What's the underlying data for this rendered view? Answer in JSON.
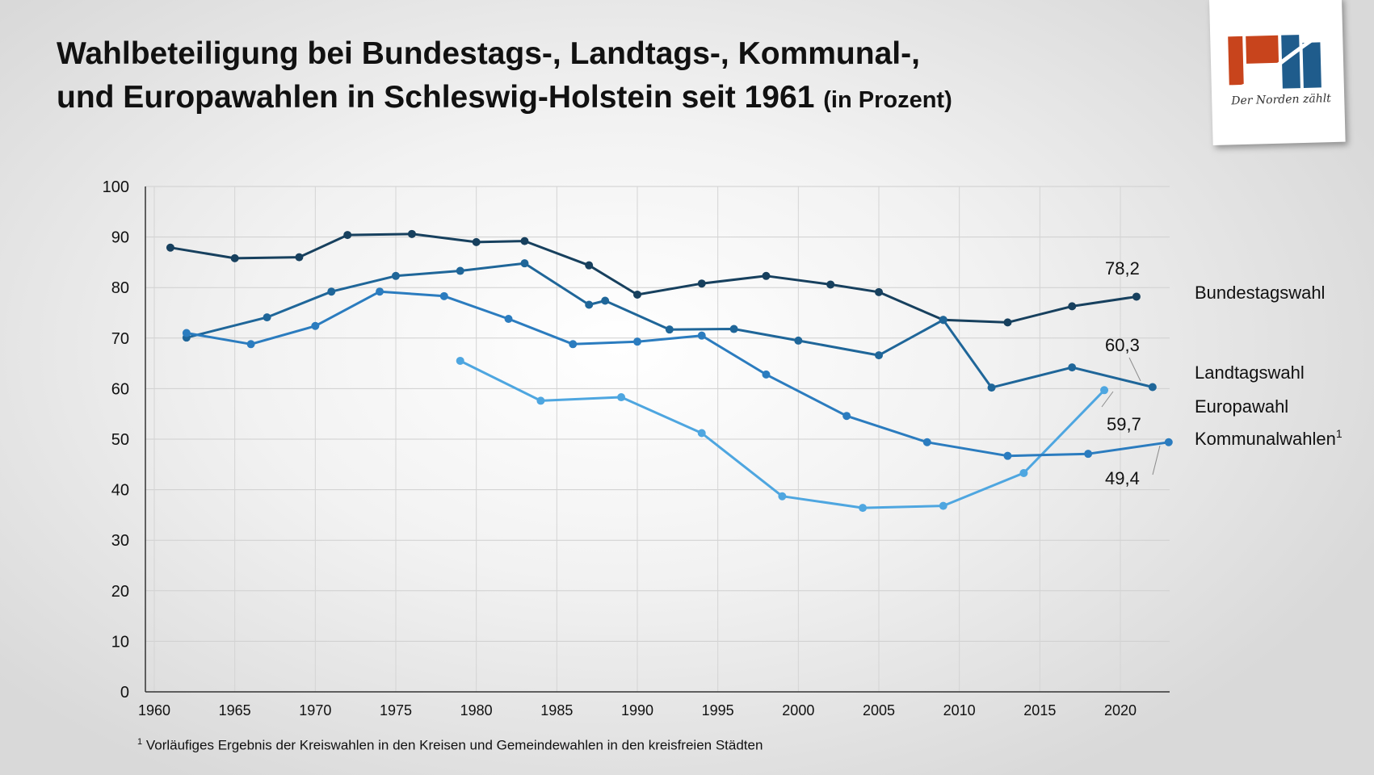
{
  "title": {
    "line1": "Wahlbeteiligung bei Bundestags-, Landtags-, Kommunal-,",
    "line2": "und Europawahlen in Schleswig-Holstein seit 1961",
    "unit": "(in Prozent)"
  },
  "logo": {
    "text": "Der Norden zählt",
    "colors": [
      "#c8441c",
      "#1f5c8c"
    ]
  },
  "footnote": {
    "marker": "1",
    "text": "Vorläufiges Ergebnis der Kreiswahlen in den Kreisen und Gemeindewahlen in den kreisfreien Städten"
  },
  "chart_data": {
    "type": "line",
    "title": "Wahlbeteiligung bei Bundestags-, Landtags-, Kommunal-, und Europawahlen in Schleswig-Holstein seit 1961 (in Prozent)",
    "xlim": [
      1960,
      2023
    ],
    "ylim": [
      0,
      100
    ],
    "xticks": [
      1960,
      1965,
      1970,
      1975,
      1980,
      1985,
      1990,
      1995,
      2000,
      2005,
      2010,
      2015,
      2020
    ],
    "yticks": [
      0,
      10,
      20,
      30,
      40,
      50,
      60,
      70,
      80,
      90,
      100
    ],
    "grid": true,
    "series": [
      {
        "name": "Bundestagswahl",
        "color": "#17405e",
        "end_label": "78,2",
        "x": [
          1961,
          1965,
          1969,
          1972,
          1976,
          1980,
          1983,
          1987,
          1990,
          1994,
          1998,
          2002,
          2005,
          2009,
          2013,
          2017,
          2021
        ],
        "values": [
          87.9,
          85.8,
          86.0,
          90.4,
          90.6,
          89.0,
          89.2,
          84.4,
          78.6,
          80.8,
          82.3,
          80.6,
          79.1,
          73.6,
          73.1,
          76.3,
          78.2
        ]
      },
      {
        "name": "Landtagswahl",
        "color": "#1f6699",
        "end_label": "60,3",
        "x": [
          1962,
          1967,
          1971,
          1975,
          1979,
          1983,
          1987,
          1988,
          1992,
          1996,
          2000,
          2005,
          2009,
          2012,
          2017,
          2022
        ],
        "values": [
          70.1,
          74.1,
          79.2,
          82.3,
          83.3,
          84.8,
          76.6,
          77.4,
          71.7,
          71.8,
          69.5,
          66.6,
          73.6,
          60.2,
          64.2,
          60.3
        ]
      },
      {
        "name": "Europawahl",
        "color": "#4ea6e0",
        "end_label": "59,7",
        "x": [
          1979,
          1984,
          1989,
          1994,
          1999,
          2004,
          2009,
          2014,
          2019
        ],
        "values": [
          65.5,
          57.6,
          58.3,
          51.2,
          38.7,
          36.4,
          36.8,
          43.3,
          59.7
        ]
      },
      {
        "name": "Kommunalwahlen",
        "name_sup": "1",
        "color": "#2b7cbf",
        "end_label": "49,4",
        "x": [
          1962,
          1966,
          1970,
          1974,
          1978,
          1982,
          1986,
          1990,
          1994,
          1998,
          2003,
          2008,
          2013,
          2018,
          2023
        ],
        "values": [
          71.0,
          68.8,
          72.4,
          79.2,
          78.3,
          73.8,
          68.8,
          69.3,
          70.5,
          62.8,
          54.6,
          49.4,
          46.7,
          47.1,
          49.4
        ]
      }
    ]
  }
}
